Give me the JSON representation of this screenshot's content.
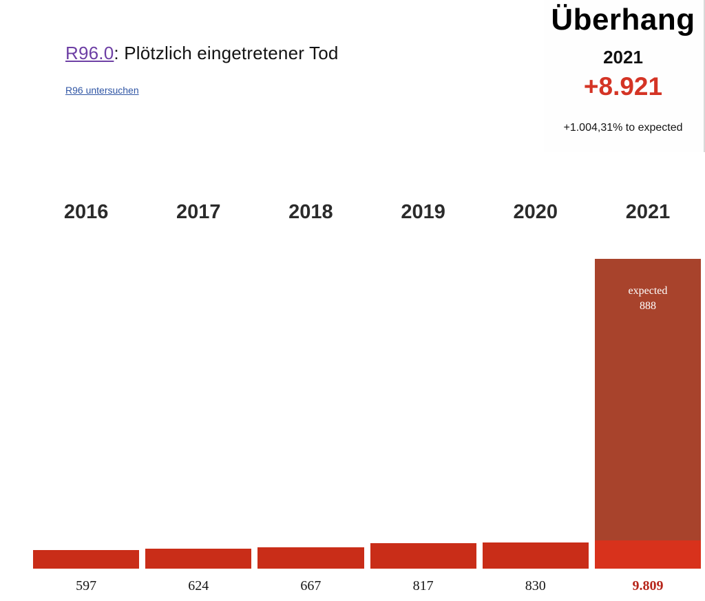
{
  "header": {
    "code_link": "R96.0",
    "title_rest": ": Plötzlich eingetretener Tod",
    "sub_link": "R96 untersuchen"
  },
  "overhang": {
    "title": "Überhang",
    "year": "2021",
    "value": "+8.921",
    "subtitle": "+1.004,31% to expected",
    "value_color": "#d43425"
  },
  "chart_data": {
    "type": "bar",
    "title": "R96.0: Plötzlich eingetretener Tod",
    "categories": [
      "2016",
      "2017",
      "2018",
      "2019",
      "2020",
      "2021"
    ],
    "values": [
      597,
      624,
      667,
      817,
      830,
      9809
    ],
    "value_labels": [
      "597",
      "624",
      "667",
      "817",
      "830",
      "9.809"
    ],
    "highlight_index": 5,
    "expected_2021": 888,
    "expected_label": "expected",
    "expected_value_label": "888",
    "ylim": [
      0,
      9809
    ],
    "grid": false,
    "legend": false,
    "colors": {
      "bar": "#c92d18",
      "bar_2021_excess": "#a8432c",
      "bar_2021_expected": "#d8321c",
      "value_highlight": "#b6251a"
    }
  }
}
